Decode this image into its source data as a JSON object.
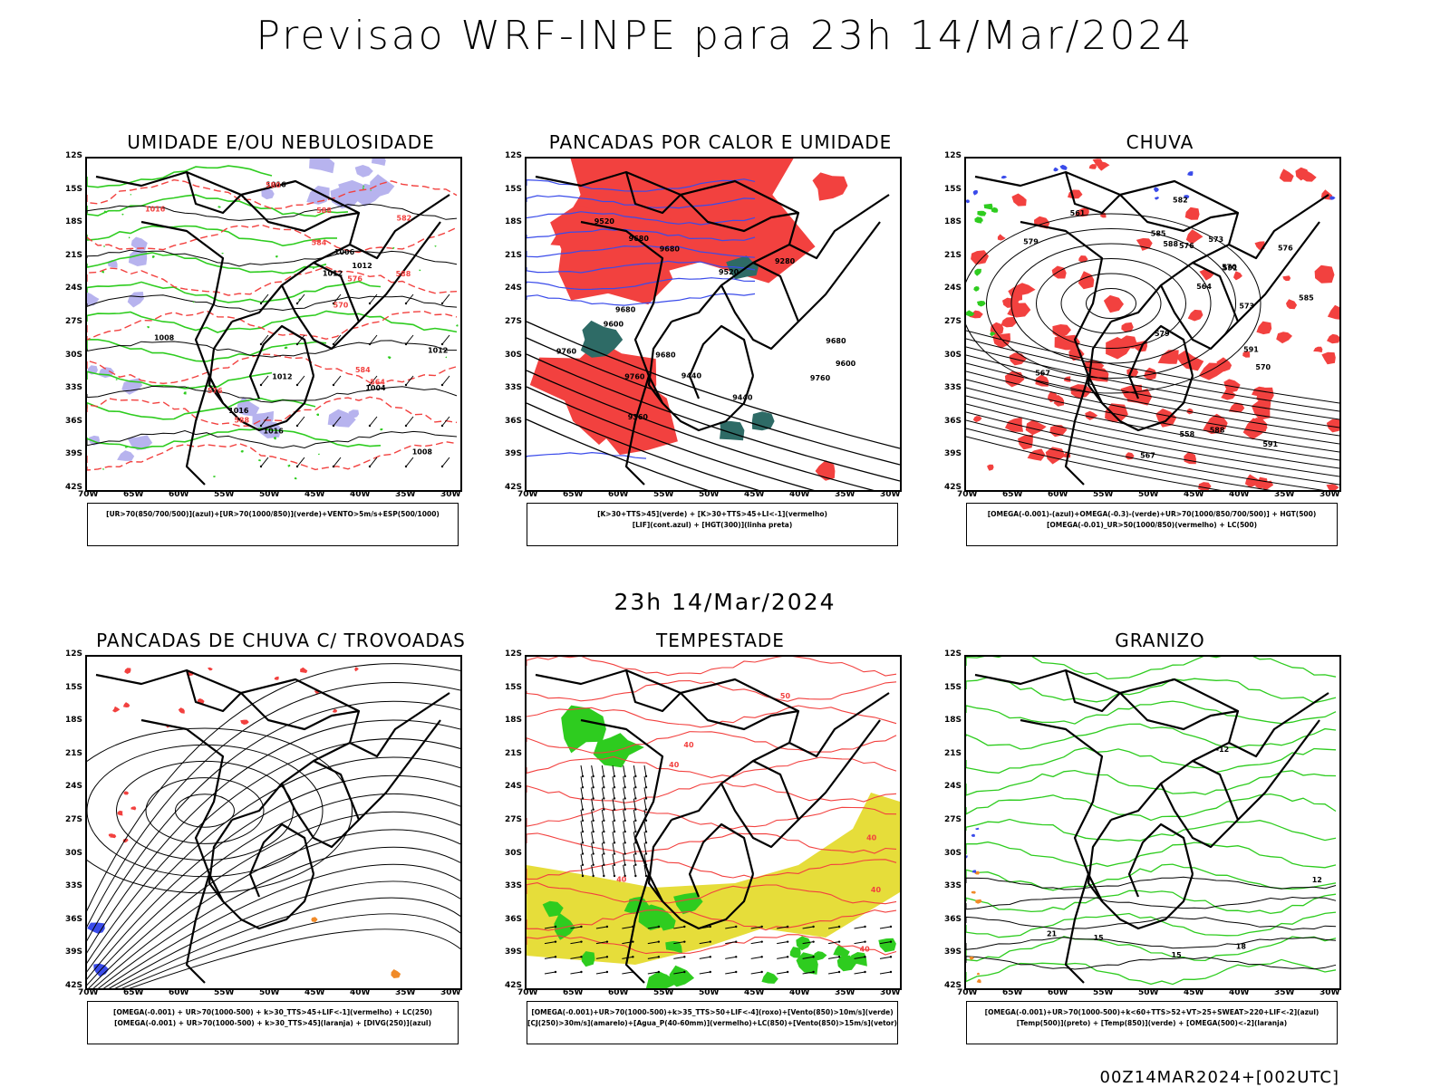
{
  "page_title": "Previsao WRF-INPE  para 23h 14/Mar/2024",
  "mid_title": "23h 14/Mar/2024",
  "footer": "00Z14MAR2024+[002UTC]",
  "lat_ticks": [
    "12S",
    "15S",
    "18S",
    "21S",
    "24S",
    "27S",
    "30S",
    "33S",
    "36S",
    "39S",
    "42S"
  ],
  "lon_ticks": [
    "70W",
    "65W",
    "60W",
    "55W",
    "50W",
    "45W",
    "40W",
    "35W",
    "30W"
  ],
  "colors": {
    "red": "#f2413f",
    "green": "#2ecc1f",
    "blue": "#3a4bea",
    "lavender": "#b7b3ee",
    "dark_teal": "#2e6b66",
    "yellow": "#e6dd3a",
    "orange": "#f08a28",
    "black": "#000000"
  },
  "panels": [
    {
      "id": "p1",
      "title": "UMIDADE E/OU NEBULOSIDADE",
      "legend": [
        "[UR>70(850/700/500)](azul)+[UR>70(1000/850)](verde)+VENTO>5m/s+ESP(500/1000)"
      ],
      "contour_labels": [
        "1012",
        "1016",
        "1016",
        "1008",
        "1012",
        "1016",
        "1012",
        "1008",
        "1004",
        "1006",
        "1012",
        "1016",
        "576",
        "580",
        "584",
        "582",
        "576",
        "570",
        "564",
        "584",
        "588",
        "588",
        "588"
      ]
    },
    {
      "id": "p2",
      "title": "PANCADAS POR CALOR E UMIDADE",
      "legend": [
        "[K>30+TTS>45](verde) + [K>30+TTS>45+LI<-1](vermelho)",
        "[LIF](cont.azul) + [HGT(300)](linha preta)"
      ],
      "contour_labels": [
        "9680",
        "9760",
        "9760",
        "9680",
        "9680",
        "9680",
        "9600",
        "9520",
        "9520",
        "9440",
        "9360",
        "9280",
        "9440",
        "9600",
        "9680",
        "9760"
      ]
    },
    {
      "id": "p3",
      "title": "CHUVA",
      "legend": [
        "[OMEGA(-0.001)-(azul)+OMEGA(-0.3)-(verde)+UR>70(1000/850/700/500)] + HGT(500)",
        "[OMEGA(-0.01)_UR>50(1000/850)(vermelho) + LC(500)"
      ],
      "contour_labels": [
        "591",
        "591",
        "591",
        "588",
        "585",
        "588",
        "582",
        "579",
        "576",
        "573",
        "570",
        "567",
        "564",
        "561",
        "558",
        "585",
        "579",
        "576",
        "573",
        "570",
        "567"
      ]
    },
    {
      "id": "p4",
      "title": "PANCADAS DE CHUVA C/ TROVOADAS",
      "legend": [
        "[OMEGA(-0.001) + UR>70(1000-500) + k>30_TTS>45+LIF<-1](vermelho) + LC(250)",
        "[OMEGA(-0.001) + UR>70(1000-500) + k>30_TTS>45](laranja) + [DIVG(250)](azul)"
      ],
      "contour_labels": []
    },
    {
      "id": "p5",
      "title": "TEMPESTADE",
      "legend": [
        "[OMEGA(-0.001)+UR>70(1000-500)+k>35_TTS>50+LIF<-4](roxo)+[Vento(850)>10m/s](verde)",
        "[CJ(250)>30m/s](amarelo)+[Agua_P(40-60mm)](vermelho)+LC(850)+[Vento(850)>15m/s](vetor)"
      ],
      "contour_labels": [
        "40",
        "40",
        "50",
        "40",
        "40",
        "40",
        "40"
      ]
    },
    {
      "id": "p6",
      "title": "GRANIZO",
      "legend": [
        "[OMEGA(-0.001)+UR>70(1000-500)+k<60+TTS>52+VT>25+SWEAT>220+LIF<-2](azul)",
        "[Temp(500)](preto) + [Temp(850)](verde) + [OMEGA(500)<-2](laranja)"
      ],
      "contour_labels": [
        "-12",
        "12",
        "15",
        "15",
        "21",
        "18"
      ]
    }
  ]
}
